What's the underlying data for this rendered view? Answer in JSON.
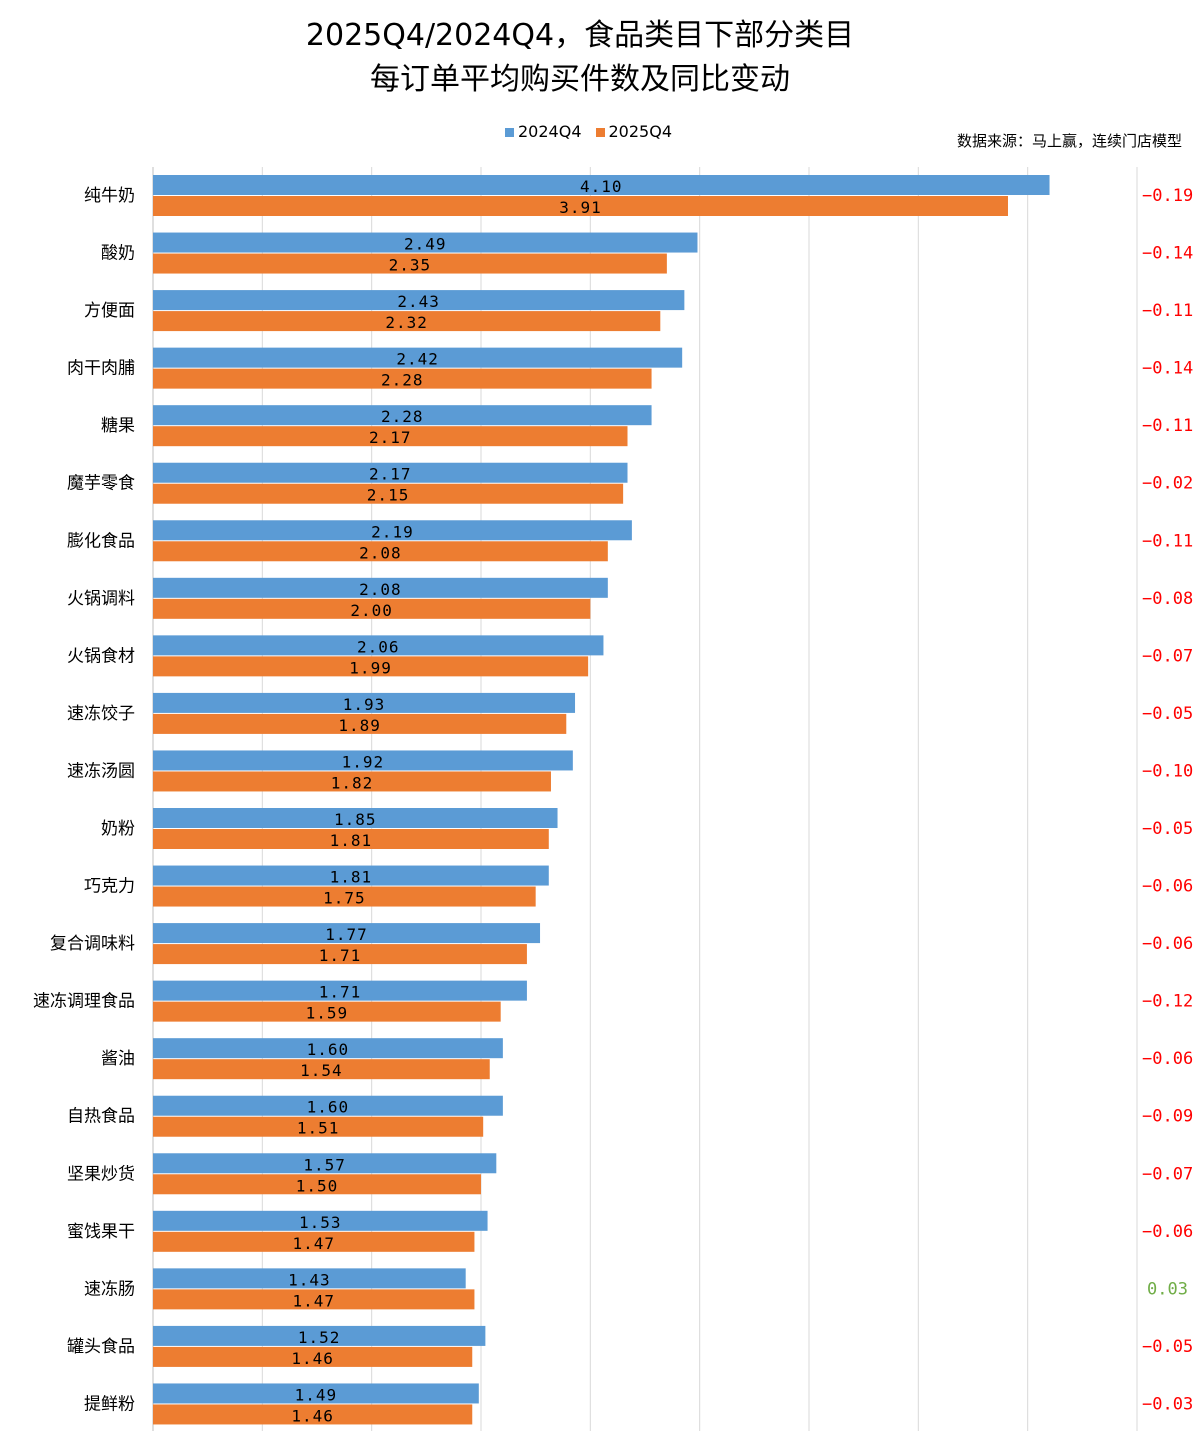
{
  "chart_data": {
    "type": "bar",
    "orientation": "horizontal",
    "title_line1": "2025Q4/2024Q4，食品类目下部分类目",
    "title_line2": "每订单平均购买件数及同比变动",
    "source": "数据来源：马上赢，连续门店模型",
    "categories": [
      "纯牛奶",
      "酸奶",
      "方便面",
      "肉干肉脯",
      "糖果",
      "魔芋零食",
      "膨化食品",
      "火锅调料",
      "火锅食材",
      "速冻饺子",
      "速冻汤圆",
      "奶粉",
      "巧克力",
      "复合调味料",
      "速冻调理食品",
      "酱油",
      "自热食品",
      "坚果炒货",
      "蜜饯果干",
      "速冻肠",
      "罐头食品",
      "提鲜粉"
    ],
    "series": [
      {
        "name": "2024Q4",
        "color": "#5b9bd5",
        "values": [
          4.1,
          2.49,
          2.43,
          2.42,
          2.28,
          2.17,
          2.19,
          2.08,
          2.06,
          1.93,
          1.92,
          1.85,
          1.81,
          1.77,
          1.71,
          1.6,
          1.6,
          1.57,
          1.53,
          1.43,
          1.52,
          1.49
        ]
      },
      {
        "name": "2025Q4",
        "color": "#ed7d31",
        "values": [
          3.91,
          2.35,
          2.32,
          2.28,
          2.17,
          2.15,
          2.08,
          2.0,
          1.99,
          1.89,
          1.82,
          1.81,
          1.75,
          1.71,
          1.59,
          1.54,
          1.51,
          1.5,
          1.47,
          1.47,
          1.46,
          1.46
        ]
      }
    ],
    "change_labels": [
      "-0.19",
      "-0.14",
      "-0.11",
      "-0.14",
      "-0.11",
      "-0.02",
      "-0.11",
      "-0.08",
      "-0.07",
      "-0.05",
      "-0.10",
      "-0.05",
      "-0.06",
      "-0.06",
      "-0.12",
      "-0.06",
      "-0.09",
      "-0.07",
      "-0.06",
      "0.03",
      "-0.05",
      "-0.03"
    ],
    "change_colors": {
      "negative": "#ff0000",
      "positive": "#70ad47"
    },
    "xlim": [
      0,
      4.5
    ],
    "x_grid_step": 0.5,
    "grid": true,
    "legend": "top-center"
  }
}
